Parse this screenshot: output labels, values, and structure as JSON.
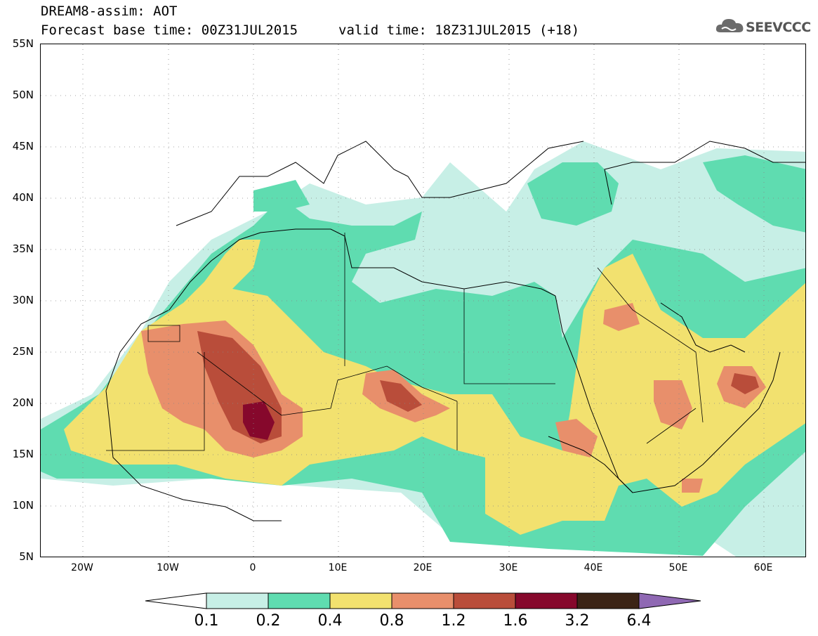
{
  "header": {
    "title": "DREAM8-assim: AOT",
    "base_time": "Forecast base time: 00Z31JUL2015",
    "valid_time": "valid time: 18Z31JUL2015 (+18)"
  },
  "logo": {
    "text": "SEEVCCC"
  },
  "map": {
    "lat_labels": [
      "55N",
      "50N",
      "45N",
      "40N",
      "35N",
      "30N",
      "25N",
      "20N",
      "15N",
      "10N",
      "5N"
    ],
    "lon_labels": [
      "20W",
      "10W",
      "0",
      "10E",
      "20E",
      "30E",
      "40E",
      "50E",
      "60E"
    ],
    "lat_range": [
      5,
      55
    ],
    "lon_range": [
      -25,
      65
    ]
  },
  "colorbar": {
    "labels": [
      "0.1",
      "0.2",
      "0.4",
      "0.8",
      "1.2",
      "1.6",
      "3.2",
      "6.4"
    ],
    "colors": [
      "#ffffff",
      "#c7efe6",
      "#5fdcb0",
      "#f2e16f",
      "#e88f6b",
      "#b94d3a",
      "#86082c",
      "#3b2416",
      "#8f68b3"
    ]
  },
  "legend_colors": {
    "border": "#000000"
  }
}
